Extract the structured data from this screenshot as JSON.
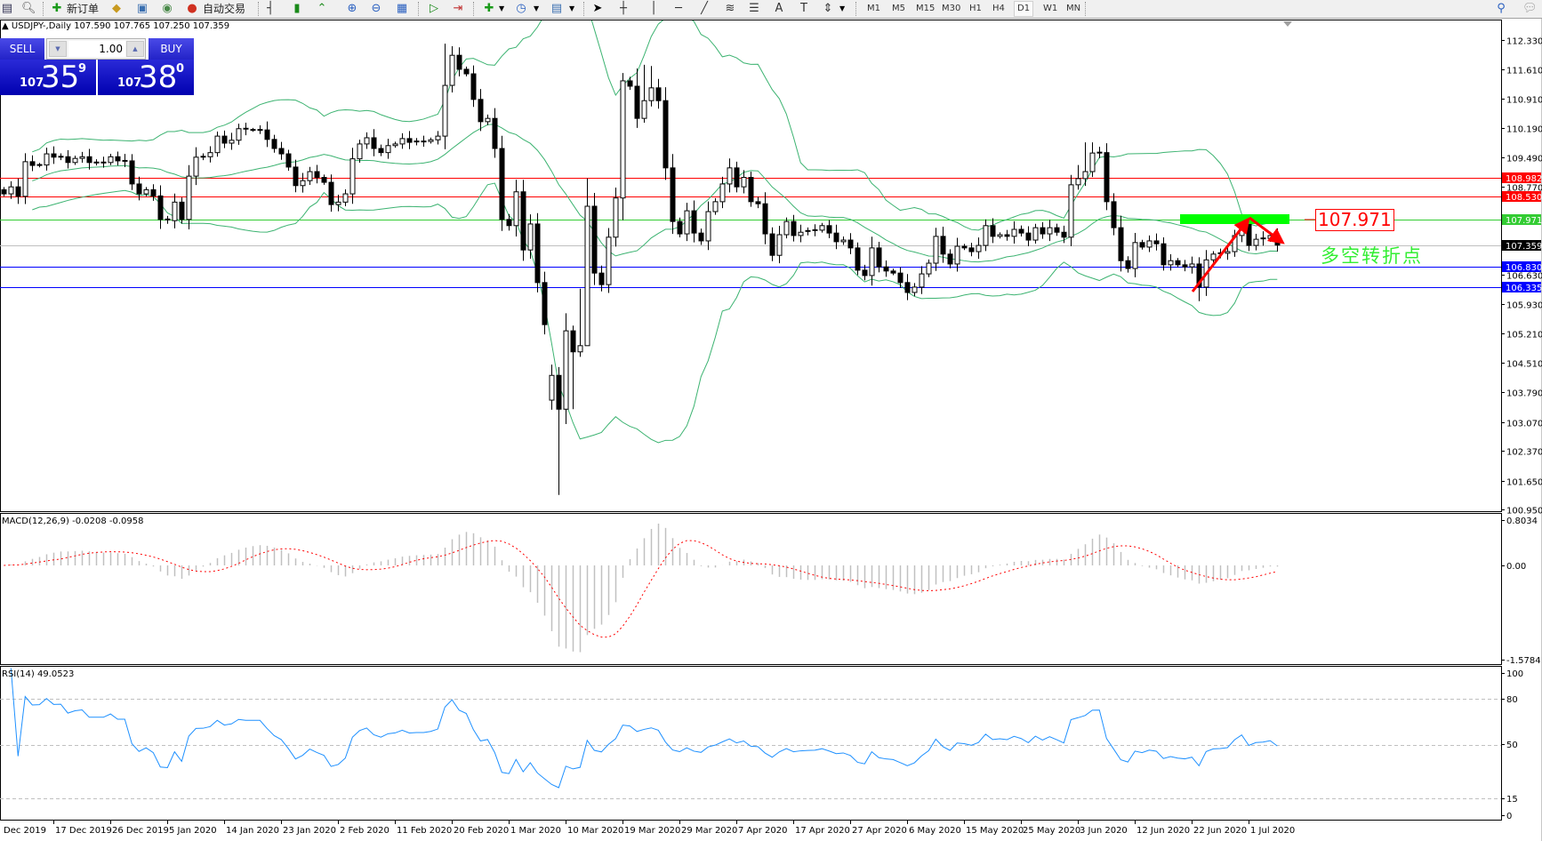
{
  "toolbar": {
    "new_order_label": "新订单",
    "auto_trading_label": "自动交易",
    "timeframes": [
      "M1",
      "M5",
      "M15",
      "M30",
      "H1",
      "H4",
      "D1",
      "W1",
      "MN"
    ],
    "active_timeframe": "D1",
    "icons": [
      "new-chart-icon",
      "profiles-icon",
      "new-order-icon",
      "metaeditor-icon",
      "market-watch-icon",
      "signals-icon",
      "auto-trading-icon",
      "bar-chart-icon",
      "candlestick-icon",
      "line-chart-icon",
      "zoom-in-icon",
      "zoom-out-icon",
      "tile-windows-icon",
      "auto-scroll-icon",
      "chart-shift-icon",
      "indicators-icon",
      "periods-icon",
      "templates-icon",
      "cursor-icon",
      "crosshair-icon",
      "vertical-line-icon",
      "horizontal-line-icon",
      "trendline-icon",
      "fibonacci-icon",
      "channels-icon",
      "text-icon",
      "text-label-icon",
      "arrows-icon",
      "search-icon",
      "chat-icon"
    ]
  },
  "chart": {
    "symbol_line": "USDJPY-,Daily  107.590 107.765 107.250 107.359",
    "first_open": 108.7,
    "closes": [
      108.6,
      108.77,
      108.54,
      109.38,
      109.29,
      109.3,
      109.57,
      109.49,
      109.5,
      109.36,
      109.46,
      109.5,
      109.36,
      109.36,
      109.36,
      109.5,
      109.4,
      109.4,
      108.84,
      108.6,
      108.7,
      108.55,
      107.98,
      107.95,
      108.4,
      107.98,
      109.03,
      109.49,
      109.5,
      109.6,
      110.0,
      109.83,
      109.9,
      110.18,
      110.15,
      110.15,
      110.15,
      109.92,
      109.7,
      109.57,
      109.25,
      108.8,
      108.92,
      109.14,
      109.0,
      108.88,
      108.34,
      108.4,
      108.6,
      109.45,
      109.81,
      109.96,
      109.7,
      109.6,
      109.77,
      109.81,
      109.94,
      109.85,
      109.87,
      109.87,
      109.91,
      110.0,
      111.23,
      111.96,
      111.62,
      111.51,
      110.89,
      110.35,
      110.43,
      109.7,
      107.98,
      107.83,
      108.65,
      107.24,
      107.87,
      106.45,
      105.43,
      104.2,
      103.38,
      105.28,
      104.77,
      104.92,
      108.3,
      106.68,
      106.4,
      107.55,
      108.5,
      111.34,
      111.21,
      110.43,
      110.86,
      111.17,
      110.86,
      109.23,
      107.93,
      107.63,
      108.19,
      107.65,
      107.46,
      108.17,
      108.41,
      108.84,
      109.23,
      108.77,
      109.0,
      108.41,
      108.36,
      107.63,
      107.11,
      107.61,
      107.93,
      107.59,
      107.67,
      107.7,
      107.72,
      107.83,
      107.65,
      107.44,
      107.48,
      107.29,
      106.75,
      106.62,
      107.29,
      106.83,
      106.73,
      106.68,
      106.45,
      106.21,
      106.34,
      106.66,
      106.92,
      107.57,
      107.14,
      106.9,
      107.33,
      107.29,
      107.2,
      107.35,
      107.83,
      107.57,
      107.61,
      107.57,
      107.74,
      107.65,
      107.48,
      107.78,
      107.63,
      107.78,
      107.67,
      107.55,
      108.82,
      108.97,
      109.14,
      109.59,
      109.6,
      108.41,
      107.78,
      106.98,
      106.79,
      107.42,
      107.31,
      107.46,
      107.39,
      106.88,
      106.98,
      106.88,
      106.83,
      106.9,
      106.34,
      107.0,
      107.14,
      107.16,
      107.2,
      107.59,
      107.85,
      107.35,
      107.5,
      107.52,
      107.59,
      107.359
    ],
    "open_overrides": {
      "77": 103.6,
      "175": 108.02
    },
    "high_overrides": {
      "62": 112.24,
      "63": 112.18,
      "81": 106.3,
      "87": 111.53,
      "89": 111.64,
      "90": 111.73,
      "91": 111.7,
      "151": 109.3,
      "152": 109.85,
      "153": 109.85,
      "175": 108.1
    },
    "low_overrides": {
      "78": 101.3,
      "79": 103.02,
      "80": 103.38,
      "82": 105.4,
      "168": 106.0
    },
    "price_ticks": [
      "112.330",
      "111.610",
      "110.910",
      "110.190",
      "109.490",
      "108.770",
      "106.630",
      "105.930",
      "105.210",
      "104.510",
      "103.790",
      "103.070",
      "102.370",
      "101.650",
      "100.950"
    ],
    "levels": [
      {
        "value": "108.982",
        "color": "#ff0000",
        "kind": "line"
      },
      {
        "value": "108.530",
        "color": "#ff0000",
        "kind": "line"
      },
      {
        "value": "107.971",
        "color": "#33cc33",
        "kind": "line"
      },
      {
        "value": "107.359",
        "color": "#c0c0c0",
        "label_bg": "#000000",
        "kind": "bid"
      },
      {
        "value": "106.830",
        "color": "#0000ff",
        "kind": "line"
      },
      {
        "value": "106.335",
        "color": "#0000ff",
        "kind": "line"
      }
    ],
    "indicators": {
      "bollinger_color": "#3cb371",
      "rsi_color": "#1e90ff",
      "signal_color": "#ff0000",
      "histogram_color": "#c0c0c0"
    },
    "annotation": {
      "price_box": "107.971",
      "text": "多空转折点",
      "text_color": "#33ee33",
      "zone_color": "#00ff00",
      "arrow_color": "#ff0000"
    }
  },
  "trade_panel": {
    "sell_label": "SELL",
    "buy_label": "BUY",
    "lots": "1.00",
    "sell_price": {
      "big_figure": "107",
      "pips": "35",
      "fraction": "9"
    },
    "buy_price": {
      "big_figure": "107",
      "pips": "38",
      "fraction": "0"
    }
  },
  "macd": {
    "label": "MACD(12,26,9) -0.0208 -0.0958",
    "ticks": [
      "0.8034",
      "0.00",
      "-1.5784"
    ]
  },
  "rsi": {
    "label": "RSI(14) 49.0523",
    "ticks": [
      "100",
      "80",
      "50",
      "15",
      "0"
    ]
  },
  "date_labels": [
    "Dec 2019",
    "17 Dec 2019",
    "26 Dec 2019",
    "5 Jan 2020",
    "14 Jan 2020",
    "23 Jan 2020",
    "2 Feb 2020",
    "11 Feb 2020",
    "20 Feb 2020",
    "1 Mar 2020",
    "10 Mar 2020",
    "19 Mar 2020",
    "29 Mar 2020",
    "7 Apr 2020",
    "17 Apr 2020",
    "27 Apr 2020",
    "6 May 2020",
    "15 May 2020",
    "25 May 2020",
    "3 Jun 2020",
    "12 Jun 2020",
    "22 Jun 2020",
    "1 Jul 2020"
  ]
}
